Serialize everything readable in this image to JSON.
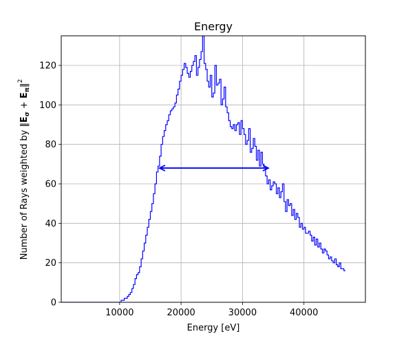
{
  "chart_data": {
    "type": "step-histogram",
    "title": "Energy",
    "xlabel": "Energy [eV]",
    "ylabel": {
      "text": "Number of Rays weighted by ",
      "norm_left": "‖",
      "bold_e": "E",
      "sub_sigma": "σ",
      "plus": " + ",
      "sub_pi": "π",
      "norm_right": "‖",
      "power": "2"
    },
    "xlim": [
      500,
      50000
    ],
    "ylim": [
      0,
      135
    ],
    "xticks": [
      10000,
      20000,
      30000,
      40000
    ],
    "xtick_labels": [
      "10000",
      "20000",
      "30000",
      "40000"
    ],
    "yticks": [
      0,
      20,
      40,
      60,
      80,
      100,
      120
    ],
    "ytick_labels": [
      "0",
      "20",
      "40",
      "60",
      "80",
      "100",
      "120"
    ],
    "grid": true,
    "line_color": "#0000ff",
    "bin_width": 250,
    "bin_start": 0,
    "counts": [
      0,
      0,
      0,
      0,
      0,
      0,
      0,
      0,
      0,
      0,
      0,
      0,
      0,
      0,
      0,
      0,
      0,
      0,
      0,
      0,
      0,
      0,
      0,
      0,
      0,
      0,
      0,
      0,
      0,
      0,
      0,
      0,
      0,
      0,
      0,
      0,
      0,
      0,
      0,
      0,
      0,
      1,
      1,
      2,
      2,
      3,
      4,
      5,
      7,
      9,
      12,
      14,
      15,
      18,
      22,
      26,
      30,
      34,
      38,
      42,
      46,
      50,
      55,
      60,
      66,
      69,
      74,
      80,
      84,
      87,
      90,
      92,
      95,
      97,
      98,
      99,
      101,
      105,
      108,
      112,
      115,
      118,
      121,
      119,
      116,
      114,
      117,
      120,
      122,
      125,
      115,
      119,
      123,
      127,
      135,
      121,
      118,
      112,
      109,
      115,
      104,
      106,
      120,
      110,
      111,
      113,
      100,
      103,
      109,
      99,
      96,
      92,
      89,
      88,
      90,
      87,
      90,
      91,
      85,
      92,
      88,
      85,
      80,
      82,
      88,
      76,
      78,
      83,
      79,
      72,
      77,
      69,
      76,
      70,
      68,
      64,
      60,
      62,
      57,
      59,
      61,
      60,
      55,
      58,
      53,
      56,
      60,
      51,
      46,
      52,
      49,
      50,
      44,
      47,
      42,
      45,
      43,
      38,
      40,
      37,
      38,
      35,
      35,
      36,
      34,
      31,
      33,
      29,
      32,
      28,
      30,
      27,
      25,
      27,
      26,
      24,
      22,
      23,
      21,
      20,
      22,
      19,
      18,
      20,
      17,
      17,
      16
    ],
    "arrow": {
      "from": 16500,
      "to": 34200,
      "y": 68
    }
  }
}
